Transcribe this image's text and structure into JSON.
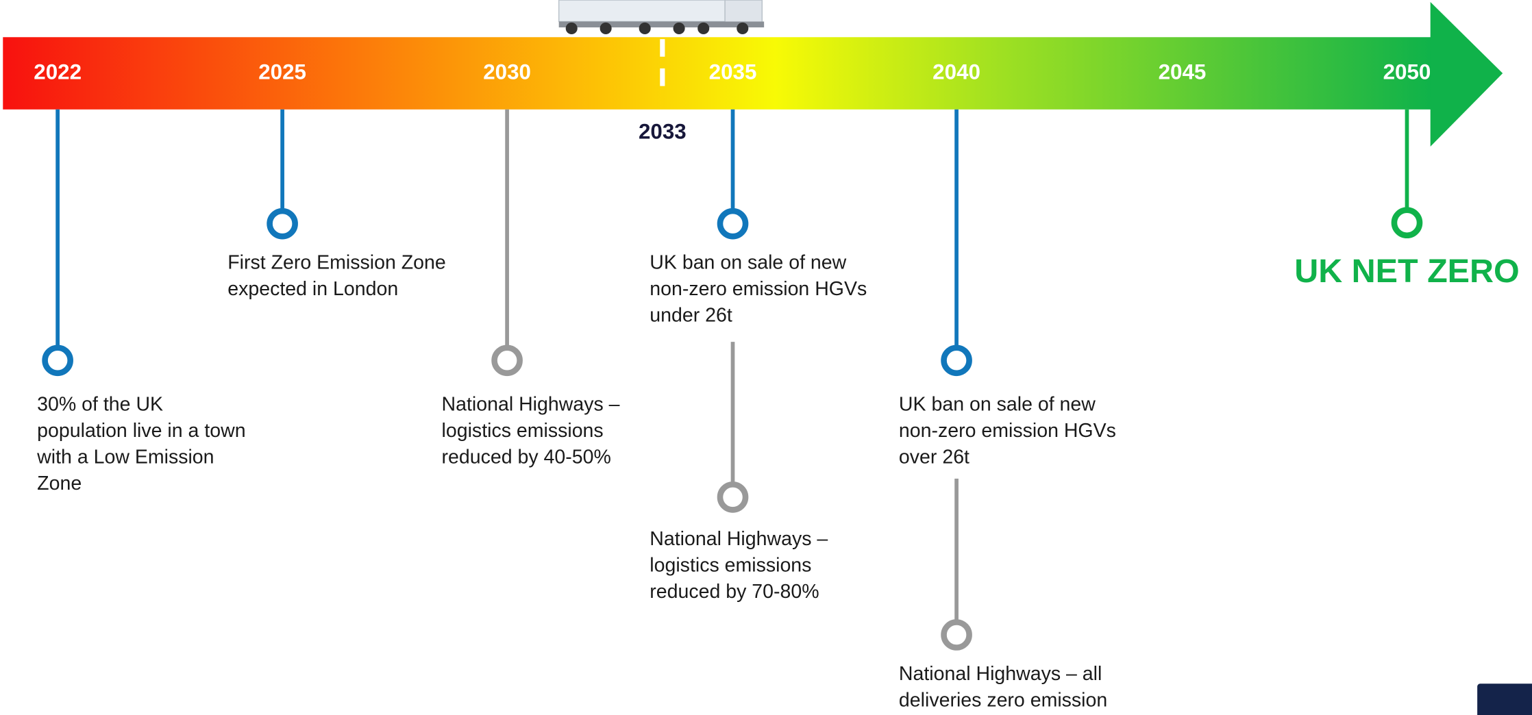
{
  "timeline": {
    "years": [
      "2022",
      "2025",
      "2030",
      "2035",
      "2040",
      "2045",
      "2050"
    ],
    "marker": "2033",
    "events": [
      {
        "lines": [
          "30% of the UK",
          "population live in a town",
          "with a Low Emission",
          "Zone"
        ]
      },
      {
        "lines": [
          "First Zero Emission Zone",
          "expected in London"
        ]
      },
      {
        "lines": [
          "National Highways –",
          "logistics emissions",
          "reduced by 40-50%"
        ]
      },
      {
        "lines": [
          "UK ban on sale of new",
          "non-zero emission HGVs",
          "under 26t"
        ]
      },
      {
        "lines": [
          "National Highways –",
          "logistics emissions",
          "reduced by 70-80%"
        ]
      },
      {
        "lines": [
          "UK ban on sale of new",
          "non-zero emission HGVs",
          "over 26t"
        ]
      },
      {
        "lines": [
          "National Highways – all",
          "deliveries zero emission"
        ]
      },
      {
        "lines": [
          "UK NET ZERO"
        ]
      }
    ]
  }
}
